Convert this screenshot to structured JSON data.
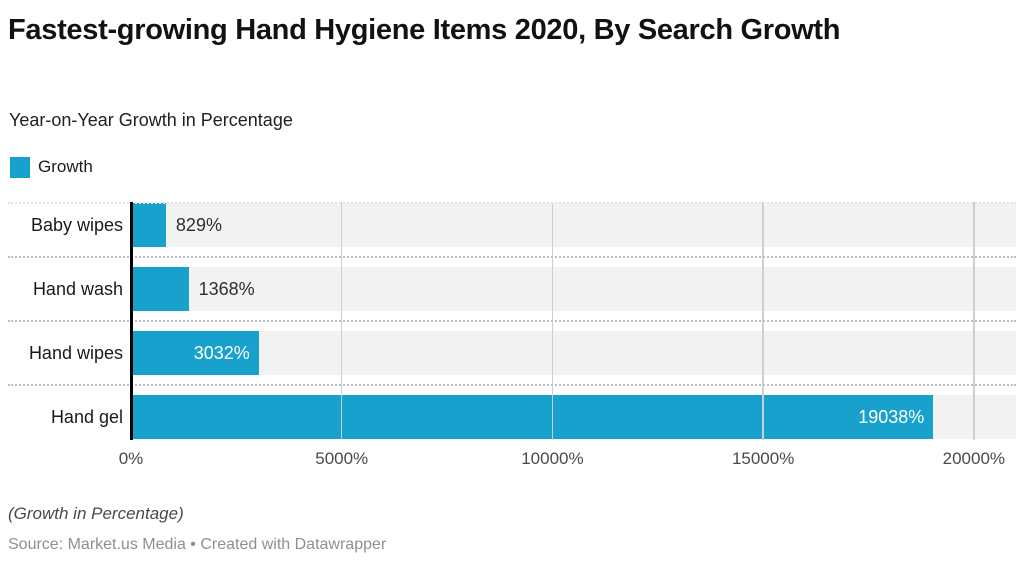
{
  "header": {
    "title": "Fastest-growing Hand Hygiene Items 2020, By Search Growth",
    "subtitle": "Year-on-Year Growth in Percentage"
  },
  "legend": {
    "label": "Growth",
    "color": "#18a1cd"
  },
  "chart_data": {
    "type": "bar",
    "orientation": "horizontal",
    "title": "Fastest-growing Hand Hygiene Items 2020, By Search Growth",
    "subtitle": "Year-on-Year Growth in Percentage",
    "series_name": "Growth",
    "categories": [
      "Baby wipes",
      "Hand wash",
      "Hand wipes",
      "Hand gel"
    ],
    "values": [
      829,
      1368,
      3032,
      19038
    ],
    "value_labels": [
      "829%",
      "1368%",
      "3032%",
      "19038%"
    ],
    "axis_tick_labels": [
      "0%",
      "5000%",
      "10000%",
      "15000%",
      "20000%"
    ],
    "axis_tick_values": [
      0,
      5000,
      10000,
      15000,
      20000
    ],
    "xlim": [
      0,
      21000
    ],
    "xlabel": "",
    "ylabel": "",
    "grid": true,
    "legend_position": "top-left",
    "bar_color": "#18a1cd",
    "track_color": "#f2f2f2",
    "gridline_color": "#cccfd1",
    "axis_line_color": "#000000"
  },
  "footer": {
    "note": "(Growth in Percentage)",
    "source": "Source: Market.us Media • Created with Datawrapper"
  }
}
